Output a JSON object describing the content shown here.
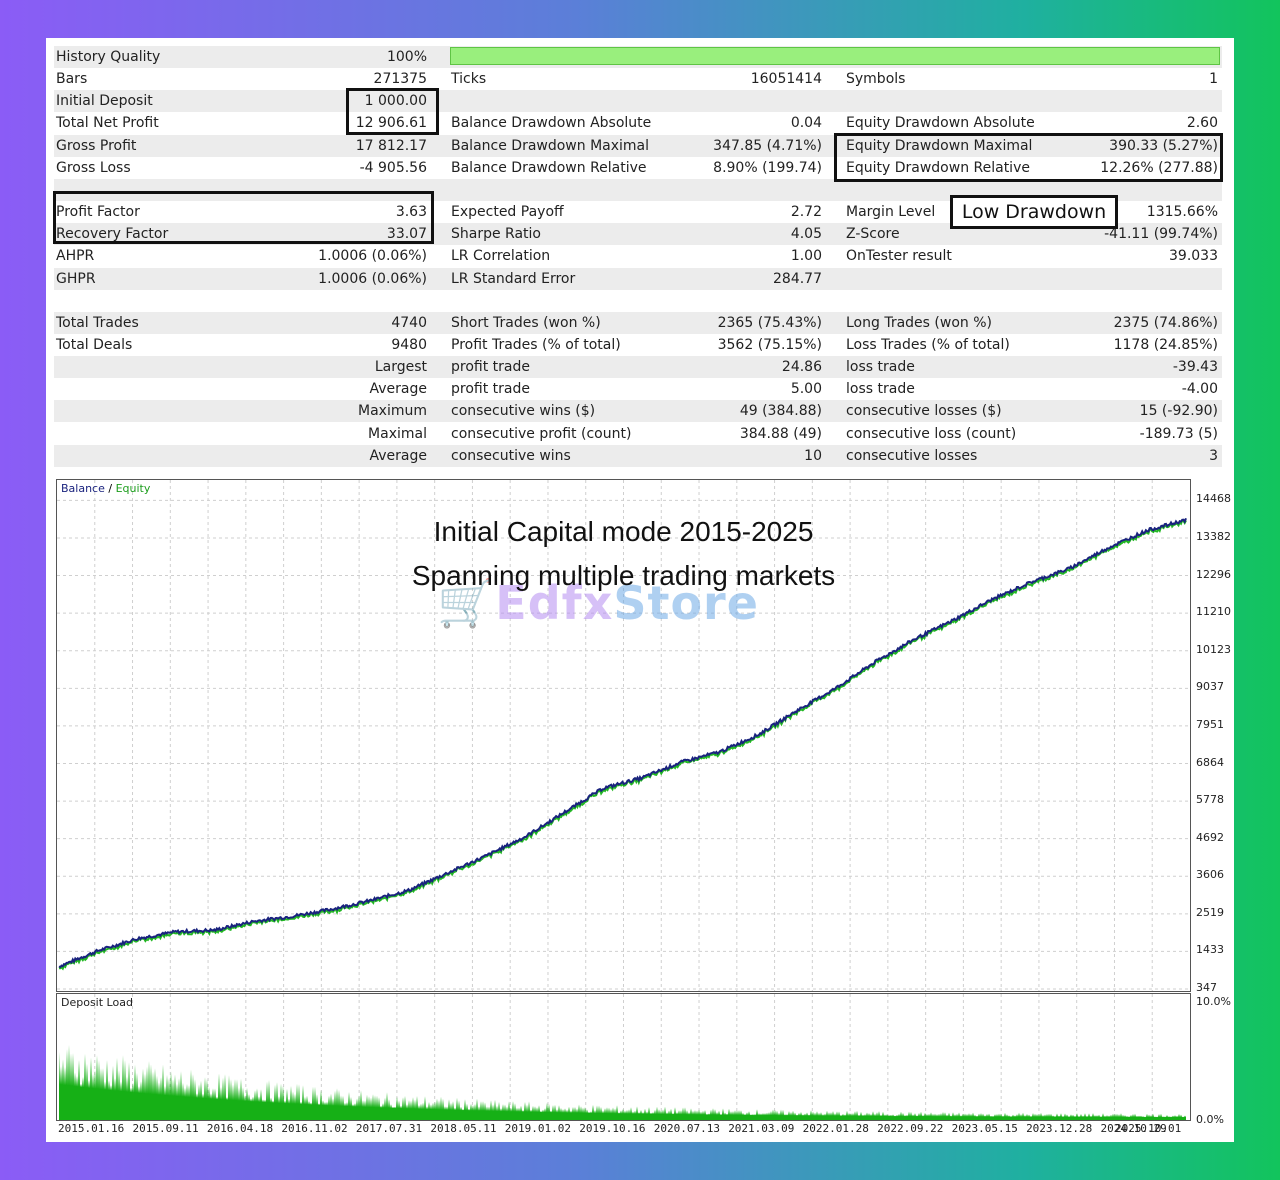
{
  "stats": {
    "rows": [
      {
        "c1l": "History Quality",
        "c1v": "100%",
        "c2l": "",
        "c2v": "",
        "c3l": "",
        "c3v": ""
      },
      {
        "c1l": "Bars",
        "c1v": "271375",
        "c2l": "Ticks",
        "c2v": "16051414",
        "c3l": "Symbols",
        "c3v": "1"
      },
      {
        "c1l": "Initial Deposit",
        "c1v": "1 000.00",
        "c2l": "",
        "c2v": "",
        "c3l": "",
        "c3v": ""
      },
      {
        "c1l": "Total Net Profit",
        "c1v": "12 906.61",
        "c2l": "Balance Drawdown Absolute",
        "c2v": "0.04",
        "c3l": "Equity Drawdown Absolute",
        "c3v": "2.60"
      },
      {
        "c1l": "Gross Profit",
        "c1v": "17 812.17",
        "c2l": "Balance Drawdown Maximal",
        "c2v": "347.85 (4.71%)",
        "c3l": "Equity Drawdown Maximal",
        "c3v": "390.33 (5.27%)"
      },
      {
        "c1l": "Gross Loss",
        "c1v": "-4 905.56",
        "c2l": "Balance Drawdown Relative",
        "c2v": "8.90% (199.74)",
        "c3l": "Equity Drawdown Relative",
        "c3v": "12.26% (277.88)"
      },
      {
        "c1l": "",
        "c1v": "",
        "c2l": "",
        "c2v": "",
        "c3l": "",
        "c3v": ""
      },
      {
        "c1l": "Profit Factor",
        "c1v": "3.63",
        "c2l": "Expected Payoff",
        "c2v": "2.72",
        "c3l": "Margin Level",
        "c3v": "1315.66%"
      },
      {
        "c1l": "Recovery Factor",
        "c1v": "33.07",
        "c2l": "Sharpe Ratio",
        "c2v": "4.05",
        "c3l": "Z-Score",
        "c3v": "-41.11 (99.74%)"
      },
      {
        "c1l": "AHPR",
        "c1v": "1.0006 (0.06%)",
        "c2l": "LR Correlation",
        "c2v": "1.00",
        "c3l": "OnTester result",
        "c3v": "39.033"
      },
      {
        "c1l": "GHPR",
        "c1v": "1.0006 (0.06%)",
        "c2l": "LR Standard Error",
        "c2v": "284.77",
        "c3l": "",
        "c3v": ""
      },
      {
        "c1l": "",
        "c1v": "",
        "c2l": "",
        "c2v": "",
        "c3l": "",
        "c3v": ""
      },
      {
        "c1l": "Total Trades",
        "c1v": "4740",
        "c2l": "Short Trades (won %)",
        "c2v": "2365 (75.43%)",
        "c3l": "Long Trades (won %)",
        "c3v": "2375 (74.86%)"
      },
      {
        "c1l": "Total Deals",
        "c1v": "9480",
        "c2l": "Profit Trades (% of total)",
        "c2v": "3562 (75.15%)",
        "c3l": "Loss Trades (% of total)",
        "c3v": "1178 (24.85%)"
      },
      {
        "c1r": "Largest",
        "c2l": "profit trade",
        "c2v": "24.86",
        "c3l": "loss trade",
        "c3v": "-39.43"
      },
      {
        "c1r": "Average",
        "c2l": "profit trade",
        "c2v": "5.00",
        "c3l": "loss trade",
        "c3v": "-4.00"
      },
      {
        "c1r": "Maximum",
        "c2l": "consecutive wins ($)",
        "c2v": "49 (384.88)",
        "c3l": "consecutive losses ($)",
        "c3v": "15 (-92.90)"
      },
      {
        "c1r": "Maximal",
        "c2l": "consecutive profit (count)",
        "c2v": "384.88 (49)",
        "c3l": "consecutive loss (count)",
        "c3v": "-189.73 (5)"
      },
      {
        "c1r": "Average",
        "c2l": "consecutive wins",
        "c2v": "10",
        "c3l": "consecutive losses",
        "c3v": "3"
      }
    ],
    "history_quality_fraction": 1.0,
    "low_drawdown_label": "Low Drawdown"
  },
  "chart": {
    "legend_balance": "Balance",
    "legend_sep": " / ",
    "legend_equity": "Equity",
    "overlay_line1": "Initial Capital mode 2015-2025",
    "overlay_line2": "Spanning multiple trading markets",
    "watermark_a": "Edfx",
    "watermark_b": "Store",
    "deposit_load_label": "Deposit Load",
    "load_max_label": "10.0%",
    "load_min_label": "0.0%",
    "colors": {
      "balance": "#1a237e",
      "equity": "#22b822",
      "load": "#16b016",
      "grid": "#cfcfcf"
    }
  },
  "chart_data": {
    "type": "line",
    "x_ticks": [
      "2015.01.16",
      "2015.09.11",
      "2016.04.18",
      "2016.11.02",
      "2017.07.31",
      "2018.05.11",
      "2019.01.02",
      "2019.10.16",
      "2020.07.13",
      "2021.03.09",
      "2022.01.28",
      "2022.09.22",
      "2023.05.15",
      "2023.12.28",
      "2024.10.29",
      "2025.10.01"
    ],
    "y_ticks": [
      347,
      1433,
      2519,
      3606,
      4692,
      5778,
      6864,
      7951,
      9037,
      10123,
      11210,
      12296,
      13382,
      14468
    ],
    "ylim": [
      347,
      15000
    ],
    "series": [
      {
        "name": "Balance",
        "values": [
          1000,
          1450,
          1800,
          2000,
          2050,
          2300,
          2450,
          2650,
          2900,
          3200,
          3700,
          4200,
          4750,
          5450,
          6150,
          6450,
          6900,
          7200,
          7700,
          8400,
          9050,
          9800,
          10450,
          11000,
          11600,
          12100,
          12500,
          13100,
          13600,
          13906
        ]
      }
    ],
    "deposit_load": {
      "ylim_percent": [
        0,
        10
      ],
      "start_percent": 6.0,
      "end_percent": 0.4
    }
  }
}
